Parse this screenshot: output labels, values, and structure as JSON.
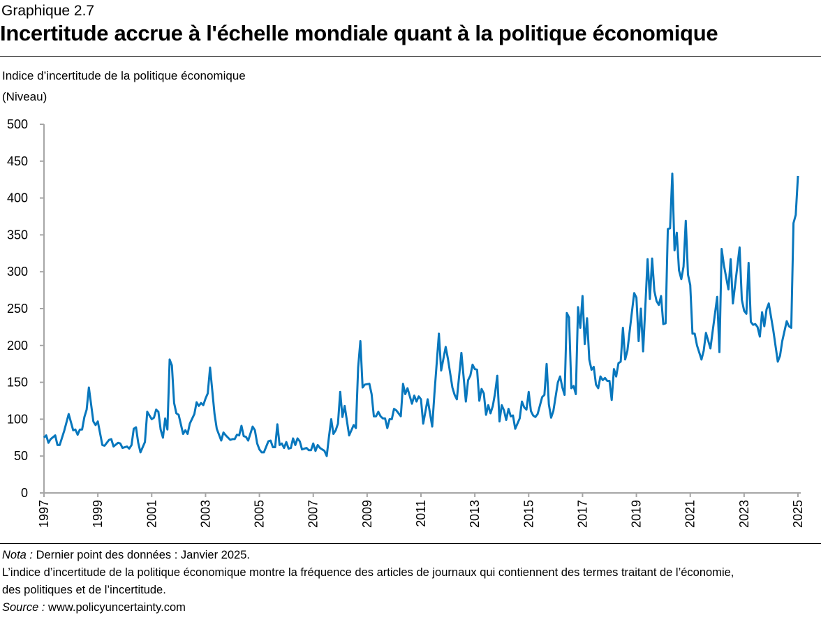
{
  "header": {
    "kicker": "Graphique 2.7",
    "title": "Incertitude accrue à l'échelle mondiale quant à la politique économique",
    "subtitle": "Indice d’incertitude de la politique économique",
    "unit": "(Niveau)"
  },
  "footer": {
    "nota_label": "Nota :",
    "nota_text": " Dernier point des données : Janvier 2025.",
    "line2": "L’indice d’incertitude de la politique économique montre la fréquence des articles de journaux qui contiennent des termes traitant de l’économie,",
    "line3": "des politiques et de l’incertitude.",
    "source_label": "Source :",
    "source_text": " www.policyuncertainty.com"
  },
  "chart_data": {
    "type": "line",
    "title": "Incertitude accrue à l'échelle mondiale quant à la politique économique",
    "ylabel": "Indice d’incertitude de la politique économique (Niveau)",
    "xlabel": "",
    "ylim": [
      0,
      500
    ],
    "yticks": [
      0,
      50,
      100,
      150,
      200,
      250,
      300,
      350,
      400,
      450,
      500
    ],
    "xlim": [
      "1997-01",
      "2025-01"
    ],
    "xticks": [
      "1997",
      "1999",
      "2001",
      "2003",
      "2005",
      "2007",
      "2009",
      "2011",
      "2013",
      "2015",
      "2017",
      "2019",
      "2021",
      "2023",
      "2025"
    ],
    "grid": false,
    "legend": "none",
    "color": "#0877BD",
    "series": [
      {
        "x": [
          "1997-01",
          "1997-02",
          "1997-03",
          "1997-04",
          "1997-06",
          "1997-07",
          "1997-08",
          "1997-10",
          "1997-12",
          "1998-02",
          "1998-03",
          "1998-04",
          "1998-05",
          "1998-06",
          "1998-07",
          "1998-08",
          "1998-09",
          "1998-11",
          "1998-12",
          "1999-01",
          "1999-03",
          "1999-04",
          "1999-06",
          "1999-07",
          "1999-08",
          "1999-10",
          "1999-11",
          "1999-12",
          "2000-02",
          "2000-03",
          "2000-04",
          "2000-05",
          "2000-06",
          "2000-07",
          "2000-08",
          "2000-10",
          "2000-11",
          "2001-01",
          "2001-02",
          "2001-03",
          "2001-04",
          "2001-05",
          "2001-06",
          "2001-07",
          "2001-08",
          "2001-09",
          "2001-10",
          "2001-11",
          "2001-12",
          "2002-01",
          "2002-03",
          "2002-04",
          "2002-05",
          "2002-06",
          "2002-08",
          "2002-09",
          "2002-10",
          "2002-11",
          "2002-12",
          "2003-01",
          "2003-02",
          "2003-03",
          "2003-05",
          "2003-06",
          "2003-08",
          "2003-09",
          "2003-10",
          "2003-12",
          "2004-01",
          "2004-02",
          "2004-03",
          "2004-04",
          "2004-05",
          "2004-06",
          "2004-07",
          "2004-08",
          "2004-10",
          "2004-11",
          "2004-12",
          "2005-01",
          "2005-02",
          "2005-03",
          "2005-05",
          "2005-06",
          "2005-07",
          "2005-08",
          "2005-09",
          "2005-10",
          "2005-11",
          "2005-12",
          "2006-01",
          "2006-02",
          "2006-03",
          "2006-04",
          "2006-05",
          "2006-06",
          "2006-07",
          "2006-08",
          "2006-10",
          "2006-11",
          "2006-12",
          "2007-01",
          "2007-02",
          "2007-03",
          "2007-04",
          "2007-05",
          "2007-06",
          "2007-07",
          "2007-08",
          "2007-09",
          "2007-10",
          "2007-11",
          "2007-12",
          "2008-01",
          "2008-02",
          "2008-03",
          "2008-05",
          "2008-07",
          "2008-08",
          "2008-09",
          "2008-10",
          "2008-11",
          "2008-12",
          "2009-02",
          "2009-03",
          "2009-04",
          "2009-05",
          "2009-06",
          "2009-07",
          "2009-08",
          "2009-09",
          "2009-10",
          "2009-11",
          "2009-12",
          "2010-01",
          "2010-02",
          "2010-04",
          "2010-05",
          "2010-06",
          "2010-07",
          "2010-09",
          "2010-10",
          "2010-11",
          "2010-12",
          "2011-01",
          "2011-02",
          "2011-04",
          "2011-06",
          "2011-07",
          "2011-09",
          "2011-10",
          "2011-12",
          "2012-01",
          "2012-03",
          "2012-04",
          "2012-05",
          "2012-07",
          "2012-09",
          "2012-10",
          "2012-11",
          "2012-12",
          "2013-01",
          "2013-02",
          "2013-03",
          "2013-04",
          "2013-05",
          "2013-06",
          "2013-07",
          "2013-08",
          "2013-09",
          "2013-10",
          "2013-11",
          "2013-12",
          "2014-01",
          "2014-02",
          "2014-03",
          "2014-04",
          "2014-05",
          "2014-06",
          "2014-07",
          "2014-09",
          "2014-10",
          "2014-11",
          "2014-12",
          "2015-01",
          "2015-02",
          "2015-03",
          "2015-04",
          "2015-05",
          "2015-07",
          "2015-08",
          "2015-09",
          "2015-10",
          "2015-11",
          "2015-12",
          "2016-02",
          "2016-03",
          "2016-04",
          "2016-05",
          "2016-06",
          "2016-07",
          "2016-08",
          "2016-09",
          "2016-10",
          "2016-11",
          "2016-12",
          "2017-01",
          "2017-02",
          "2017-03",
          "2017-04",
          "2017-05",
          "2017-06",
          "2017-07",
          "2017-08",
          "2017-09",
          "2017-10",
          "2017-11",
          "2017-12",
          "2018-01",
          "2018-02",
          "2018-03",
          "2018-04",
          "2018-05",
          "2018-06",
          "2018-07",
          "2018-08",
          "2018-09",
          "2018-11",
          "2018-12",
          "2019-01",
          "2019-02",
          "2019-03",
          "2019-04",
          "2019-05",
          "2019-06",
          "2019-07",
          "2019-08",
          "2019-09",
          "2019-10",
          "2019-11",
          "2019-12",
          "2020-01",
          "2020-02",
          "2020-03",
          "2020-04",
          "2020-05",
          "2020-06",
          "2020-07",
          "2020-08",
          "2020-09",
          "2020-10",
          "2020-11",
          "2020-12",
          "2021-01",
          "2021-02",
          "2021-03",
          "2021-04",
          "2021-06",
          "2021-07",
          "2021-08",
          "2021-10",
          "2022-01",
          "2022-02",
          "2022-03",
          "2022-04",
          "2022-06",
          "2022-07",
          "2022-08",
          "2022-11",
          "2022-12",
          "2023-01",
          "2023-02",
          "2023-03",
          "2023-04",
          "2023-05",
          "2023-06",
          "2023-07",
          "2023-08",
          "2023-09",
          "2023-10",
          "2023-11",
          "2023-12",
          "2024-02",
          "2024-04",
          "2024-05",
          "2024-06",
          "2024-08",
          "2024-09",
          "2024-10",
          "2024-11",
          "2024-12",
          "2025-01"
        ],
        "y": [
          75,
          78,
          68,
          73,
          78,
          65,
          65,
          84,
          107,
          85,
          86,
          79,
          86,
          86,
          103,
          113,
          143,
          97,
          92,
          97,
          65,
          64,
          72,
          73,
          63,
          68,
          67,
          61,
          63,
          60,
          65,
          87,
          89,
          68,
          55,
          69,
          110,
          100,
          102,
          113,
          110,
          86,
          75,
          101,
          86,
          181,
          173,
          122,
          108,
          106,
          80,
          85,
          80,
          94,
          107,
          123,
          118,
          122,
          119,
          128,
          135,
          170,
          107,
          87,
          71,
          82,
          78,
          72,
          73,
          73,
          79,
          78,
          91,
          77,
          76,
          71,
          90,
          85,
          67,
          59,
          55,
          55,
          70,
          71,
          62,
          62,
          93,
          65,
          67,
          61,
          69,
          60,
          61,
          74,
          65,
          74,
          70,
          59,
          61,
          58,
          58,
          67,
          57,
          65,
          61,
          59,
          57,
          50,
          76,
          100,
          80,
          85,
          94,
          137,
          103,
          118,
          78,
          92,
          88,
          170,
          206,
          143,
          147,
          148,
          134,
          104,
          104,
          110,
          104,
          101,
          101,
          88,
          100,
          100,
          114,
          112,
          104,
          148,
          134,
          142,
          121,
          132,
          124,
          131,
          127,
          94,
          127,
          90,
          135,
          216,
          166,
          198,
          182,
          143,
          133,
          127,
          190,
          124,
          153,
          159,
          174,
          168,
          167,
          125,
          141,
          135,
          106,
          119,
          108,
          118,
          135,
          159,
          97,
          119,
          112,
          99,
          114,
          104,
          105,
          87,
          101,
          124,
          116,
          113,
          137,
          111,
          105,
          103,
          107,
          130,
          133,
          175,
          120,
          102,
          111,
          150,
          158,
          143,
          133,
          244,
          238,
          142,
          145,
          134,
          252,
          224,
          267,
          202,
          237,
          181,
          167,
          171,
          147,
          142,
          158,
          153,
          156,
          152,
          152,
          126,
          168,
          158,
          176,
          178,
          224,
          181,
          193,
          245,
          271,
          265,
          206,
          250,
          192,
          253,
          317,
          263,
          318,
          274,
          260,
          255,
          267,
          229,
          230,
          358,
          359,
          433,
          329,
          353,
          302,
          290,
          307,
          369,
          296,
          282,
          216,
          216,
          200,
          181,
          193,
          217,
          196,
          266,
          191,
          331,
          309,
          276,
          317,
          257,
          333,
          262,
          247,
          243,
          312,
          232,
          228,
          229,
          225,
          212,
          245,
          226,
          249,
          257,
          221,
          178,
          186,
          206,
          233,
          226,
          224,
          366,
          377,
          430
        ]
      }
    ]
  }
}
